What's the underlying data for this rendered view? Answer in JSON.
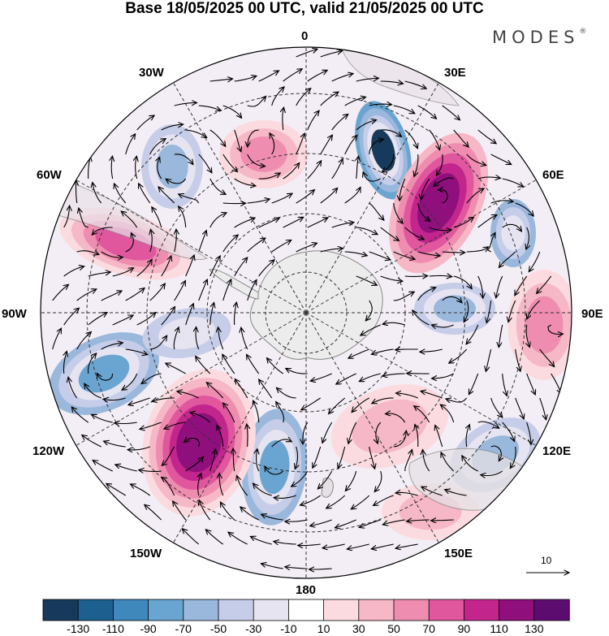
{
  "header": {
    "title": "Base 18/05/2025 00 UTC, valid 21/05/2025 00 UTC",
    "brand": "MODES",
    "brand_mark": "®"
  },
  "map": {
    "projection": "south-polar-stereographic",
    "longitude_labels": [
      "0",
      "30E",
      "60E",
      "90E",
      "120E",
      "150E",
      "180",
      "150W",
      "120W",
      "90W",
      "60W",
      "30W"
    ],
    "reference_vector_label": "10",
    "colors": {
      "land": "#ececec",
      "coast": "#888888",
      "gridline": "#333333",
      "streamline": "#000000"
    }
  },
  "colorbar": {
    "tick_labels": [
      "-130",
      "-110",
      "-90",
      "-70",
      "-50",
      "-30",
      "-10",
      "10",
      "30",
      "50",
      "70",
      "90",
      "110",
      "130"
    ],
    "colors": [
      "#173a5c",
      "#1d5f8e",
      "#3f88bc",
      "#6aa5d1",
      "#9ab8dc",
      "#c6cde8",
      "#e6e4f1",
      "#ffffff",
      "#fbdbe0",
      "#f6b7c6",
      "#ef8db0",
      "#e0579e",
      "#c2258c",
      "#8f0f7c",
      "#5b0c6e"
    ]
  }
}
